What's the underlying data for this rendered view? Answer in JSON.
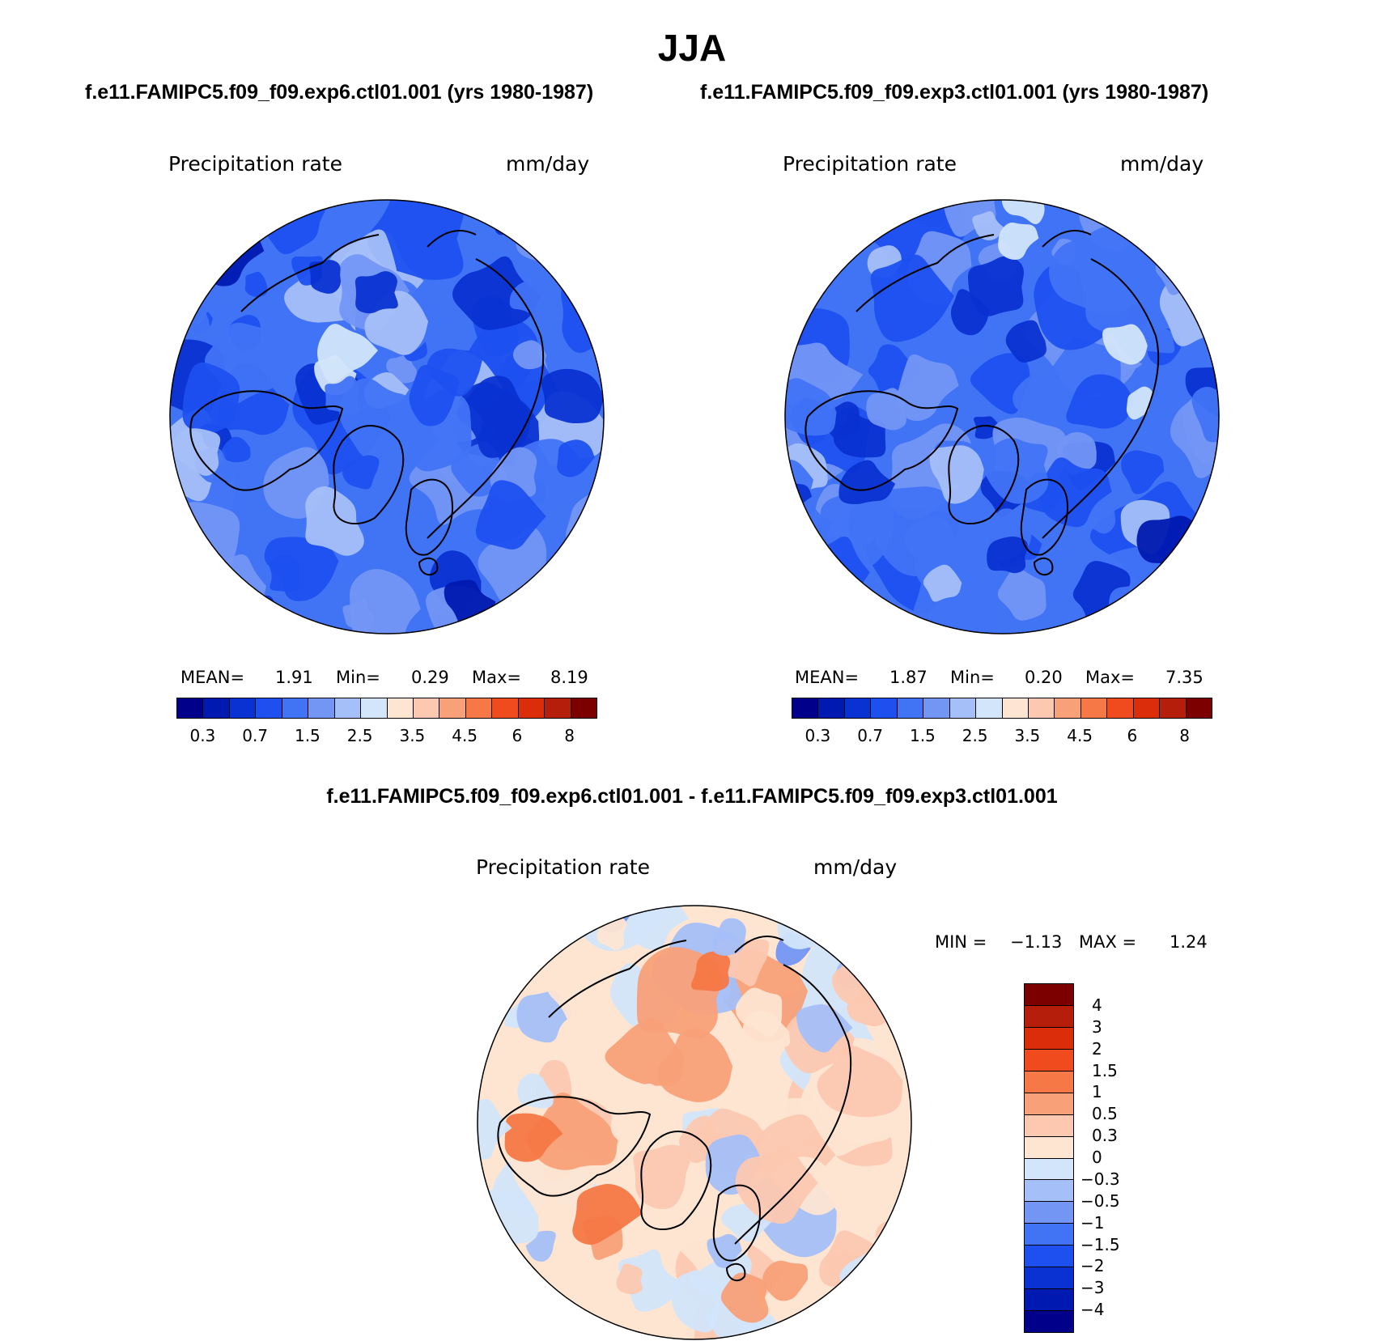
{
  "title": "JJA",
  "panels": [
    {
      "case_title": "f.e11.FAMIPC5.f09_f09.exp6.ctl01.001 (yrs 1980-1987)",
      "variable": "Precipitation rate",
      "units": "mm/day",
      "mean_label": "MEAN=",
      "mean": "1.91",
      "min_label": "Min=",
      "min": "0.29",
      "max_label": "Max=",
      "max": "8.19"
    },
    {
      "case_title": "f.e11.FAMIPC5.f09_f09.exp3.ctl01.001 (yrs 1980-1987)",
      "variable": "Precipitation rate",
      "units": "mm/day",
      "mean_label": "MEAN=",
      "mean": "1.87",
      "min_label": "Min=",
      "min": "0.20",
      "max_label": "Max=",
      "max": "7.35"
    }
  ],
  "difference": {
    "title": "f.e11.FAMIPC5.f09_f09.exp6.ctl01.001 - f.e11.FAMIPC5.f09_f09.exp3.ctl01.001",
    "variable": "Precipitation rate",
    "units": "mm/day",
    "min_label": "MIN =",
    "min": "−1.13",
    "max_label": "MAX =",
    "max": "1.24"
  },
  "colorbar_main": {
    "colors": [
      "#00008b",
      "#0019b0",
      "#0a32d2",
      "#1e50f0",
      "#4173f5",
      "#7396f5",
      "#a5bff8",
      "#d2e5fa",
      "#fde5d2",
      "#fcc8b0",
      "#f8a078",
      "#f57846",
      "#f04b1e",
      "#dc2d0a",
      "#b41e0a",
      "#7d0000"
    ],
    "tick_labels": [
      "0.3",
      "0.7",
      "1.5",
      "2.5",
      "3.5",
      "4.5",
      "6",
      "8"
    ]
  },
  "colorbar_diff": {
    "colors": [
      "#7d0000",
      "#b41e0a",
      "#dc2d0a",
      "#f04b1e",
      "#f57846",
      "#f8a078",
      "#fcc8b0",
      "#fde5d2",
      "#d2e5fa",
      "#a5bff8",
      "#7396f5",
      "#4173f5",
      "#1e50f0",
      "#0a32d2",
      "#0019b0",
      "#00008b"
    ],
    "tick_labels": [
      "4",
      "3",
      "2",
      "1.5",
      "1",
      "0.5",
      "0.3",
      "0",
      "−0.3",
      "−0.5",
      "−1",
      "−1.5",
      "−2",
      "−3",
      "−4"
    ]
  }
}
